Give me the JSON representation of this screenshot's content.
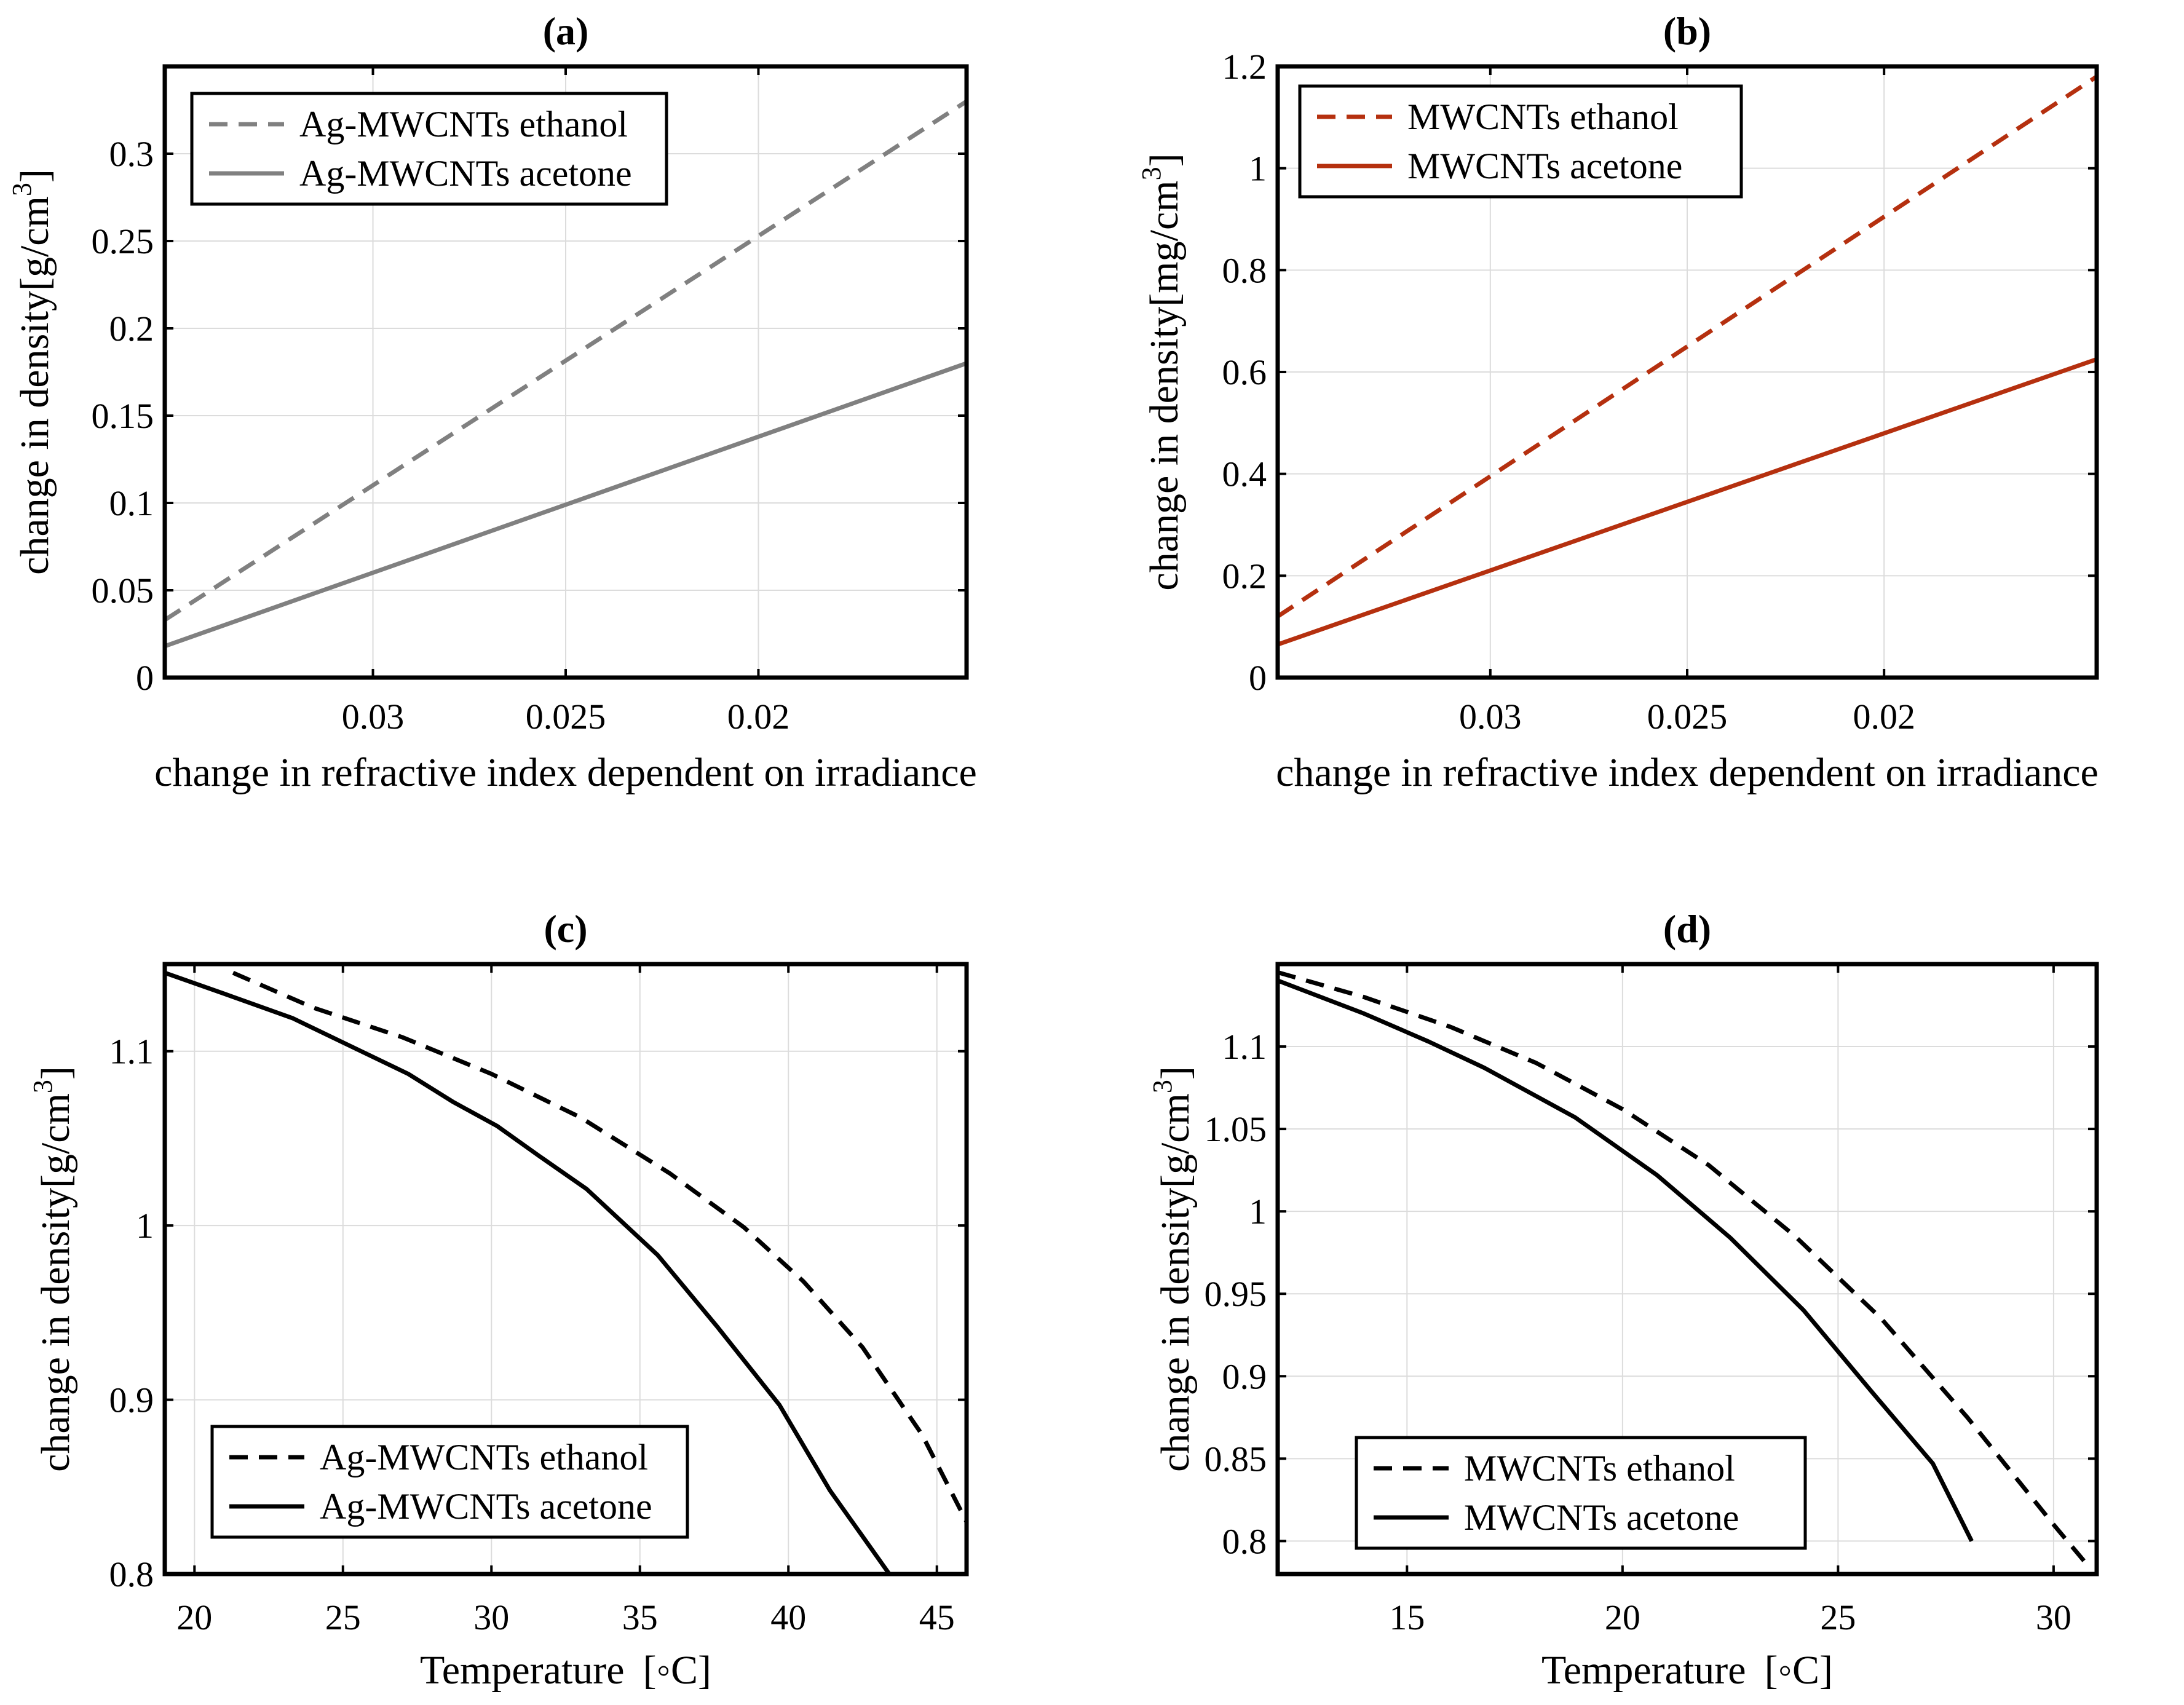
{
  "chart_data": [
    {
      "id": "a",
      "type": "line",
      "title": "(a)",
      "xlabel": "change in refractive index dependent on irradiance",
      "ylabel": "change in density[g/cm",
      "ylabel_sup": "3",
      "ylabel_end": "]",
      "xlim": [
        0.0354,
        0.0146
      ],
      "ylim": [
        0,
        0.35
      ],
      "xticks": [
        0.03,
        0.025,
        0.02
      ],
      "xtick_labels": [
        "0.03",
        "0.025",
        "0.02"
      ],
      "yticks": [
        0,
        0.05,
        0.1,
        0.15,
        0.2,
        0.25,
        0.3
      ],
      "ytick_labels": [
        "0",
        "0.05",
        "0.1",
        "0.15",
        "0.2",
        "0.25",
        "0.3"
      ],
      "grid": true,
      "legend_position": "top-left",
      "series": [
        {
          "name": "Ag-MWCNTs ethanol",
          "color": "#808080",
          "dash": "dashed",
          "x": [
            0.0354,
            0.0146
          ],
          "y": [
            0.033,
            0.33
          ]
        },
        {
          "name": "Ag-MWCNTs acetone",
          "color": "#808080",
          "dash": "solid",
          "x": [
            0.0354,
            0.0146
          ],
          "y": [
            0.018,
            0.18
          ]
        }
      ]
    },
    {
      "id": "b",
      "type": "line",
      "title": "(b)",
      "xlabel": "change in refractive index dependent on irradiance",
      "ylabel": "change in density[mg/cm",
      "ylabel_sup": "3",
      "ylabel_end": "]",
      "xlim": [
        0.0354,
        0.0146
      ],
      "ylim": [
        0,
        1.2
      ],
      "xticks": [
        0.03,
        0.025,
        0.02
      ],
      "xtick_labels": [
        "0.03",
        "0.025",
        "0.02"
      ],
      "yticks": [
        0,
        0.2,
        0.4,
        0.6,
        0.8,
        1,
        1.2
      ],
      "ytick_labels": [
        "0",
        "0.2",
        "0.4",
        "0.6",
        "0.8",
        "1",
        "1.2"
      ],
      "grid": true,
      "legend_position": "top-left",
      "series": [
        {
          "name": "MWCNTs ethanol",
          "color": "#b5300f",
          "dash": "dashed",
          "x": [
            0.0354,
            0.0146
          ],
          "y": [
            0.12,
            1.18
          ]
        },
        {
          "name": "MWCNTs acetone",
          "color": "#b5300f",
          "dash": "solid",
          "x": [
            0.0354,
            0.0146
          ],
          "y": [
            0.065,
            0.625
          ]
        }
      ]
    },
    {
      "id": "c",
      "type": "line",
      "title": "(c)",
      "xlabel": "Temperature",
      "xlabel_unit": "[◦C]",
      "ylabel": "change in density[g/cm",
      "ylabel_sup": "3",
      "ylabel_end": "]",
      "xlim": [
        19,
        46
      ],
      "ylim": [
        0.8,
        1.15
      ],
      "xticks": [
        20,
        25,
        30,
        35,
        40,
        45
      ],
      "xtick_labels": [
        "20",
        "25",
        "30",
        "35",
        "40",
        "45"
      ],
      "yticks": [
        0.8,
        0.9,
        1,
        1.1
      ],
      "ytick_labels": [
        "0.8",
        "0.9",
        "1",
        "1.1"
      ],
      "grid": true,
      "legend_position": "bottom-left",
      "series": [
        {
          "name": "Ag-MWCNTs ethanol",
          "color": "#000000",
          "dash": "dashed",
          "x": [
            21.3,
            24,
            27,
            30,
            33,
            36,
            38.5,
            40.5,
            42.5,
            44.5,
            46
          ],
          "y": [
            1.145,
            1.125,
            1.108,
            1.087,
            1.062,
            1.03,
            0.999,
            0.968,
            0.93,
            0.88,
            0.83
          ]
        },
        {
          "name": "Ag-MWCNTs acetone",
          "color": "#000000",
          "dash": "solid",
          "x": [
            19,
            21,
            23.3,
            25,
            27.2,
            28.7,
            30.2,
            31.6,
            33.2,
            35.6,
            37.6,
            39.7,
            41.4,
            43.4
          ],
          "y": [
            1.145,
            1.133,
            1.119,
            1.105,
            1.087,
            1.071,
            1.057,
            1.04,
            1.021,
            0.983,
            0.942,
            0.897,
            0.848,
            0.8
          ]
        }
      ]
    },
    {
      "id": "d",
      "type": "line",
      "title": "(d)",
      "xlabel": "Temperature",
      "xlabel_unit": "[◦C]",
      "ylabel": "change in density[g/cm",
      "ylabel_sup": "3",
      "ylabel_end": "]",
      "xlim": [
        12,
        31
      ],
      "ylim": [
        0.78,
        1.15
      ],
      "xticks": [
        15,
        20,
        25,
        30
      ],
      "xtick_labels": [
        "15",
        "20",
        "25",
        "30"
      ],
      "yticks": [
        0.8,
        0.85,
        0.9,
        0.95,
        1,
        1.05,
        1.1
      ],
      "ytick_labels": [
        "0.8",
        "0.85",
        "0.9",
        "0.95",
        "1",
        "1.05",
        "1.1"
      ],
      "grid": true,
      "legend_position": "bottom-left",
      "series": [
        {
          "name": "MWCNTs ethanol",
          "color": "#000000",
          "dash": "dashed",
          "x": [
            12,
            14,
            16,
            18,
            20,
            22,
            24,
            26,
            28,
            30,
            30.8
          ],
          "y": [
            1.145,
            1.13,
            1.112,
            1.09,
            1.062,
            1.028,
            0.985,
            0.935,
            0.875,
            0.81,
            0.785
          ]
        },
        {
          "name": "MWCNTs acetone",
          "color": "#000000",
          "dash": "solid",
          "x": [
            12,
            14,
            15.5,
            16.8,
            18.9,
            20.8,
            22.5,
            24.2,
            25.8,
            27.2,
            28.1
          ],
          "y": [
            1.14,
            1.12,
            1.103,
            1.087,
            1.057,
            1.022,
            0.984,
            0.94,
            0.89,
            0.847,
            0.8
          ]
        }
      ]
    }
  ]
}
